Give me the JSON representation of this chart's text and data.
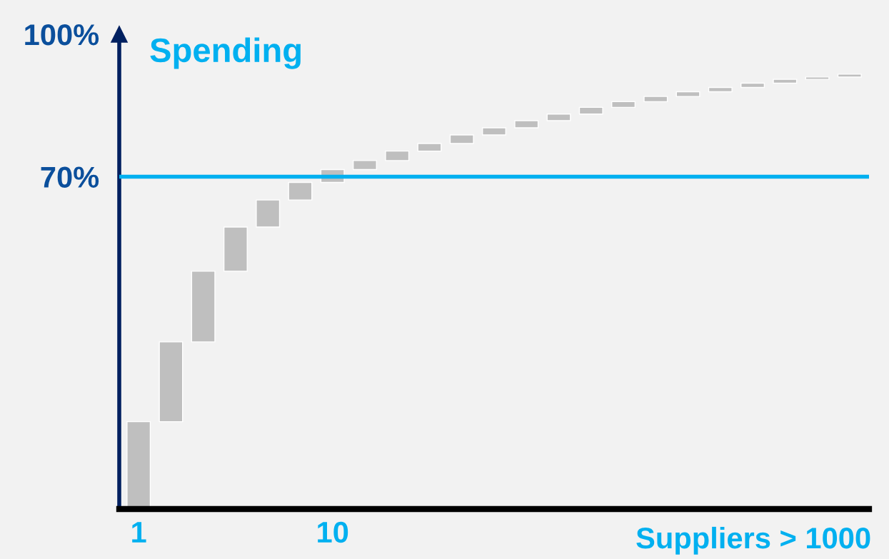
{
  "chart_data": {
    "type": "bar",
    "ylabel": "Spending",
    "xlabel": "Suppliers > 1000",
    "categories": [
      "1",
      null,
      null,
      null,
      null,
      null,
      "10",
      null,
      null,
      null,
      null,
      null,
      null,
      null,
      null,
      null,
      null,
      null,
      null,
      null,
      null,
      null,
      null
    ],
    "base": [
      0,
      18.4,
      35.2,
      50.1,
      59.4,
      65.1,
      68.8,
      71.5,
      73.4,
      75.4,
      77.0,
      78.8,
      80.3,
      81.8,
      83.2,
      84.6,
      85.8,
      86.9,
      87.9,
      88.8,
      89.7,
      90.5,
      91.0
    ],
    "values": [
      18.4,
      16.8,
      14.9,
      9.3,
      5.7,
      3.7,
      2.7,
      1.9,
      2.0,
      1.6,
      1.8,
      1.5,
      1.5,
      1.4,
      1.4,
      1.2,
      1.1,
      1.0,
      0.9,
      0.9,
      0.8,
      0.5,
      0.6
    ],
    "color": "#bfbfbf",
    "ylim": [
      0,
      100
    ],
    "yticks": [
      {
        "value": 70,
        "label": "70%"
      },
      {
        "value": 100,
        "label": "100%"
      }
    ],
    "ref_lines": [
      {
        "axis": "y",
        "value": 70,
        "color": "#00b0f0"
      }
    ],
    "grid": false,
    "legend": false
  }
}
